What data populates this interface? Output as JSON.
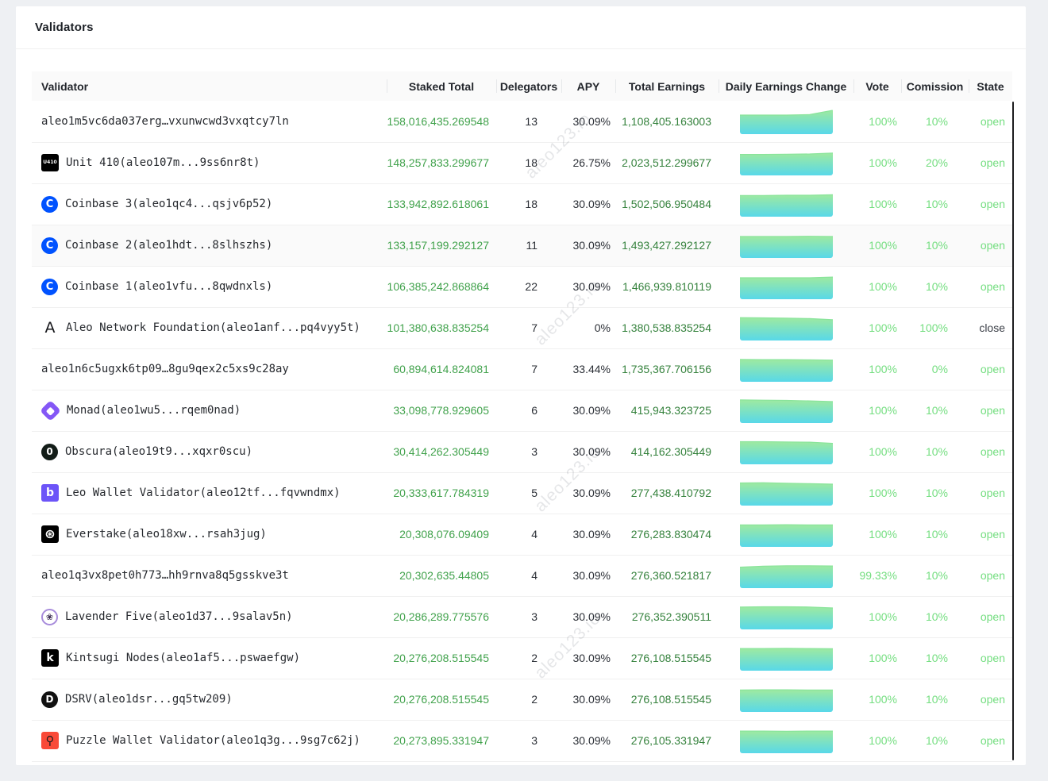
{
  "page": {
    "title": "Validators",
    "watermark": "aleo123.io"
  },
  "colors": {
    "page_bg": "#eef0f3",
    "green_staked": "#41a24c",
    "green_earnings": "#35823d",
    "green_light": "#74de80",
    "spark_top": "#9eeaa0",
    "spark_bottom": "#58d8e9",
    "spark_edge": "#8ae49b"
  },
  "table": {
    "columns": [
      {
        "key": "validator",
        "label": "Validator"
      },
      {
        "key": "staked",
        "label": "Staked Total"
      },
      {
        "key": "delegators",
        "label": "Delegators"
      },
      {
        "key": "apy",
        "label": "APY"
      },
      {
        "key": "earnings",
        "label": "Total Earnings"
      },
      {
        "key": "chart",
        "label": "Daily Earnings Change"
      },
      {
        "key": "vote",
        "label": "Vote"
      },
      {
        "key": "commission",
        "label": "Comission"
      },
      {
        "key": "state",
        "label": "State"
      }
    ],
    "rows": [
      {
        "validator": "aleo1m5vc6da037erg…vxunwcwd3vxqtcy7ln",
        "icon": null,
        "staked": "158,016,435.269548",
        "delegators": "13",
        "apy": "30.09%",
        "earnings": "1,108,405.163003",
        "vote": "100%",
        "commission": "10%",
        "state": "open",
        "spark": [
          0.8,
          0.8,
          0.8,
          0.82,
          1.0
        ]
      },
      {
        "validator": "Unit 410(aleo107m...9ss6nr8t)",
        "icon": {
          "name": "unit410-icon",
          "shape": "square",
          "bg": "#000000",
          "fg": "#ffffff",
          "glyph": "U410",
          "size": 6
        },
        "staked": "148,257,833.299677",
        "delegators": "18",
        "apy": "26.75%",
        "earnings": "2,023,512.299677",
        "vote": "100%",
        "commission": "20%",
        "state": "open",
        "spark": [
          0.88,
          0.88,
          0.89,
          0.9,
          0.94
        ]
      },
      {
        "validator": "Coinbase 3(aleo1qc4...qsjv6p52)",
        "icon": {
          "name": "coinbase-icon",
          "shape": "circle",
          "bg": "#0052ff",
          "fg": "#ffffff",
          "glyph": "C",
          "size": 13
        },
        "staked": "133,942,892.618061",
        "delegators": "18",
        "apy": "30.09%",
        "earnings": "1,502,506.950484",
        "vote": "100%",
        "commission": "10%",
        "state": "open",
        "spark": [
          0.89,
          0.89,
          0.9,
          0.9,
          0.92
        ]
      },
      {
        "validator": "Coinbase 2(aleo1hdt...8slhszhs)",
        "icon": {
          "name": "coinbase-icon",
          "shape": "circle",
          "bg": "#0052ff",
          "fg": "#ffffff",
          "glyph": "C",
          "size": 13
        },
        "staked": "133,157,199.292127",
        "delegators": "11",
        "apy": "30.09%",
        "earnings": "1,493,427.292127",
        "vote": "100%",
        "commission": "10%",
        "state": "open",
        "highlighted": true,
        "spark": [
          0.9,
          0.9,
          0.9,
          0.91,
          0.9
        ]
      },
      {
        "validator": "Coinbase 1(aleo1vfu...8qwdnxls)",
        "icon": {
          "name": "coinbase-icon",
          "shape": "circle",
          "bg": "#0052ff",
          "fg": "#ffffff",
          "glyph": "C",
          "size": 13
        },
        "staked": "106,385,242.868864",
        "delegators": "22",
        "apy": "30.09%",
        "earnings": "1,466,939.810119",
        "vote": "100%",
        "commission": "10%",
        "state": "open",
        "spark": [
          0.9,
          0.9,
          0.9,
          0.9,
          0.93
        ]
      },
      {
        "validator": "Aleo Network Foundation(aleo1anf...pq4vyy5t)",
        "icon": {
          "name": "aleo-icon",
          "shape": "plain",
          "bg": "",
          "fg": "#15161a",
          "glyph": "A",
          "size": 19
        },
        "staked": "101,380,638.835254",
        "delegators": "7",
        "apy": "0%",
        "earnings": "1,380,538.835254",
        "vote": "100%",
        "commission": "100%",
        "state": "close",
        "spark": [
          0.96,
          0.95,
          0.94,
          0.92,
          0.87
        ]
      },
      {
        "validator": "aleo1n6c5ugxk6tp09…8gu9qex2c5xs9c28ay",
        "icon": null,
        "staked": "60,894,614.824081",
        "delegators": "7",
        "apy": "33.44%",
        "earnings": "1,735,367.706156",
        "vote": "100%",
        "commission": "0%",
        "state": "open",
        "spark": [
          0.94,
          0.93,
          0.93,
          0.92,
          0.91
        ]
      },
      {
        "validator": "Monad(aleo1wu5...rqem0nad)",
        "icon": {
          "name": "monad-icon",
          "shape": "monad",
          "bg": "#8457f6",
          "fg": "#ffffff",
          "glyph": "",
          "size": 0
        },
        "staked": "33,098,778.929605",
        "delegators": "6",
        "apy": "30.09%",
        "earnings": "415,943.323725",
        "vote": "100%",
        "commission": "10%",
        "state": "open",
        "spark": [
          0.97,
          0.96,
          0.95,
          0.93,
          0.9
        ]
      },
      {
        "validator": "Obscura(aleo19t9...xqxr0scu)",
        "icon": {
          "name": "obscura-icon",
          "shape": "circle",
          "bg": "#131d18",
          "fg": "#ffffff",
          "glyph": "0",
          "size": 12
        },
        "staked": "30,414,262.305449",
        "delegators": "3",
        "apy": "30.09%",
        "earnings": "414,162.305449",
        "vote": "100%",
        "commission": "10%",
        "state": "open",
        "spark": [
          0.95,
          0.95,
          0.94,
          0.93,
          0.88
        ]
      },
      {
        "validator": "Leo Wallet Validator(aleo12tf...fqvwndmx)",
        "icon": {
          "name": "leo-wallet-icon",
          "shape": "square",
          "bg": "#6c54f8",
          "fg": "#ffffff",
          "glyph": "b",
          "size": 14
        },
        "staked": "20,333,617.784319",
        "delegators": "5",
        "apy": "30.09%",
        "earnings": "277,438.410792",
        "vote": "100%",
        "commission": "10%",
        "state": "open",
        "spark": [
          0.95,
          0.96,
          0.94,
          0.92,
          0.9
        ]
      },
      {
        "validator": "Everstake(aleo18xw...rsah3jug)",
        "icon": {
          "name": "everstake-icon",
          "shape": "square",
          "bg": "#000000",
          "fg": "#ffffff",
          "glyph": "⊛",
          "size": 16
        },
        "staked": "20,308,076.09409",
        "delegators": "4",
        "apy": "30.09%",
        "earnings": "276,283.830474",
        "vote": "100%",
        "commission": "10%",
        "state": "open",
        "spark": [
          0.92,
          0.92,
          0.93,
          0.92,
          0.92
        ]
      },
      {
        "validator": "aleo1q3vx8pet0h773…hh9rnva8q5gsskve3t",
        "icon": null,
        "staked": "20,302,635.44805",
        "delegators": "4",
        "apy": "30.09%",
        "earnings": "276,360.521817",
        "vote": "99.33%",
        "commission": "10%",
        "state": "open",
        "spark": [
          0.88,
          0.92,
          0.94,
          0.94,
          0.93
        ]
      },
      {
        "validator": "Lavender Five(aleo1d37...9salav5n)",
        "icon": {
          "name": "lavender-five-icon",
          "shape": "circle",
          "bg": "#ffffff",
          "fg": "#3c2d52",
          "glyph": "❀",
          "size": 11,
          "border": "#a78bdb"
        },
        "staked": "20,286,289.775576",
        "delegators": "3",
        "apy": "30.09%",
        "earnings": "276,352.390511",
        "vote": "100%",
        "commission": "10%",
        "state": "open",
        "spark": [
          0.94,
          0.95,
          0.95,
          0.94,
          0.9
        ]
      },
      {
        "validator": "Kintsugi Nodes(aleo1af5...pswaefgw)",
        "icon": {
          "name": "kintsugi-icon",
          "shape": "square",
          "bg": "#000000",
          "fg": "#ffffff",
          "glyph": "k",
          "size": 14
        },
        "staked": "20,276,208.515545",
        "delegators": "2",
        "apy": "30.09%",
        "earnings": "276,108.515545",
        "vote": "100%",
        "commission": "10%",
        "state": "open",
        "spark": [
          0.93,
          0.93,
          0.94,
          0.93,
          0.92
        ]
      },
      {
        "validator": "DSRV(aleo1dsr...gq5tw209)",
        "icon": {
          "name": "dsrv-icon",
          "shape": "circle",
          "bg": "#111111",
          "fg": "#ffffff",
          "glyph": "D",
          "size": 12
        },
        "staked": "20,276,208.515545",
        "delegators": "2",
        "apy": "30.09%",
        "earnings": "276,108.515545",
        "vote": "100%",
        "commission": "10%",
        "state": "open",
        "spark": [
          0.92,
          0.93,
          0.93,
          0.92,
          0.92
        ]
      },
      {
        "validator": "Puzzle Wallet Validator(aleo1q3g...9sg7c62j)",
        "icon": {
          "name": "puzzle-wallet-icon",
          "shape": "square",
          "bg": "#f94a38",
          "fg": "#1f1f1f",
          "glyph": "⚲",
          "size": 15
        },
        "staked": "20,273,895.331947",
        "delegators": "3",
        "apy": "30.09%",
        "earnings": "276,105.331947",
        "vote": "100%",
        "commission": "10%",
        "state": "open",
        "spark": [
          0.93,
          0.93,
          0.92,
          0.93,
          0.93
        ]
      }
    ]
  }
}
